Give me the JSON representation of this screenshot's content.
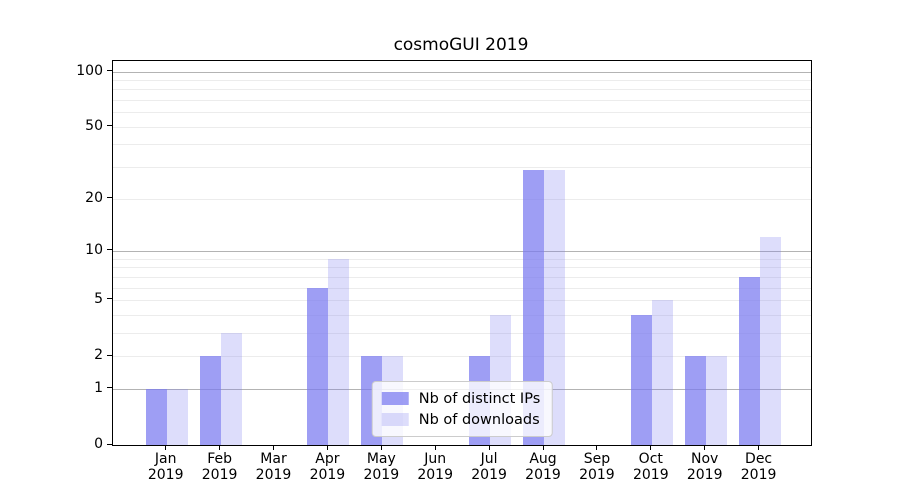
{
  "chart_data": {
    "type": "bar",
    "title": "cosmoGUI 2019",
    "categories": [
      {
        "month": "Jan",
        "year": "2019"
      },
      {
        "month": "Feb",
        "year": "2019"
      },
      {
        "month": "Mar",
        "year": "2019"
      },
      {
        "month": "Apr",
        "year": "2019"
      },
      {
        "month": "May",
        "year": "2019"
      },
      {
        "month": "Jun",
        "year": "2019"
      },
      {
        "month": "Jul",
        "year": "2019"
      },
      {
        "month": "Aug",
        "year": "2019"
      },
      {
        "month": "Sep",
        "year": "2019"
      },
      {
        "month": "Oct",
        "year": "2019"
      },
      {
        "month": "Nov",
        "year": "2019"
      },
      {
        "month": "Dec",
        "year": "2019"
      }
    ],
    "series": [
      {
        "name": "Nb of distinct IPs",
        "color": "rgba(120,120,240,0.72)",
        "values": [
          1,
          2,
          0,
          6,
          2,
          0,
          2,
          29,
          0,
          4,
          2,
          7
        ]
      },
      {
        "name": "Nb of downloads",
        "color": "rgba(120,120,240,0.25)",
        "values": [
          1,
          3,
          0,
          9,
          2,
          0,
          4,
          29,
          0,
          5,
          2,
          12
        ]
      }
    ],
    "xlabel": "",
    "ylabel": "",
    "yscale": "log1p",
    "ylim": [
      0,
      114
    ],
    "yticks": [
      0,
      1,
      2,
      5,
      10,
      20,
      50,
      100
    ],
    "major_gridlines": [
      1,
      10,
      100
    ],
    "minor_gridlines": [
      2,
      3,
      4,
      5,
      6,
      7,
      8,
      9,
      20,
      30,
      40,
      50,
      60,
      70,
      80,
      90
    ],
    "grid": true,
    "legend_position": "lower center",
    "colors": {
      "major_grid": "#b3b3b3",
      "minor_grid": "#ececec",
      "spine": "#000000",
      "legend_border": "#cccccc"
    }
  }
}
